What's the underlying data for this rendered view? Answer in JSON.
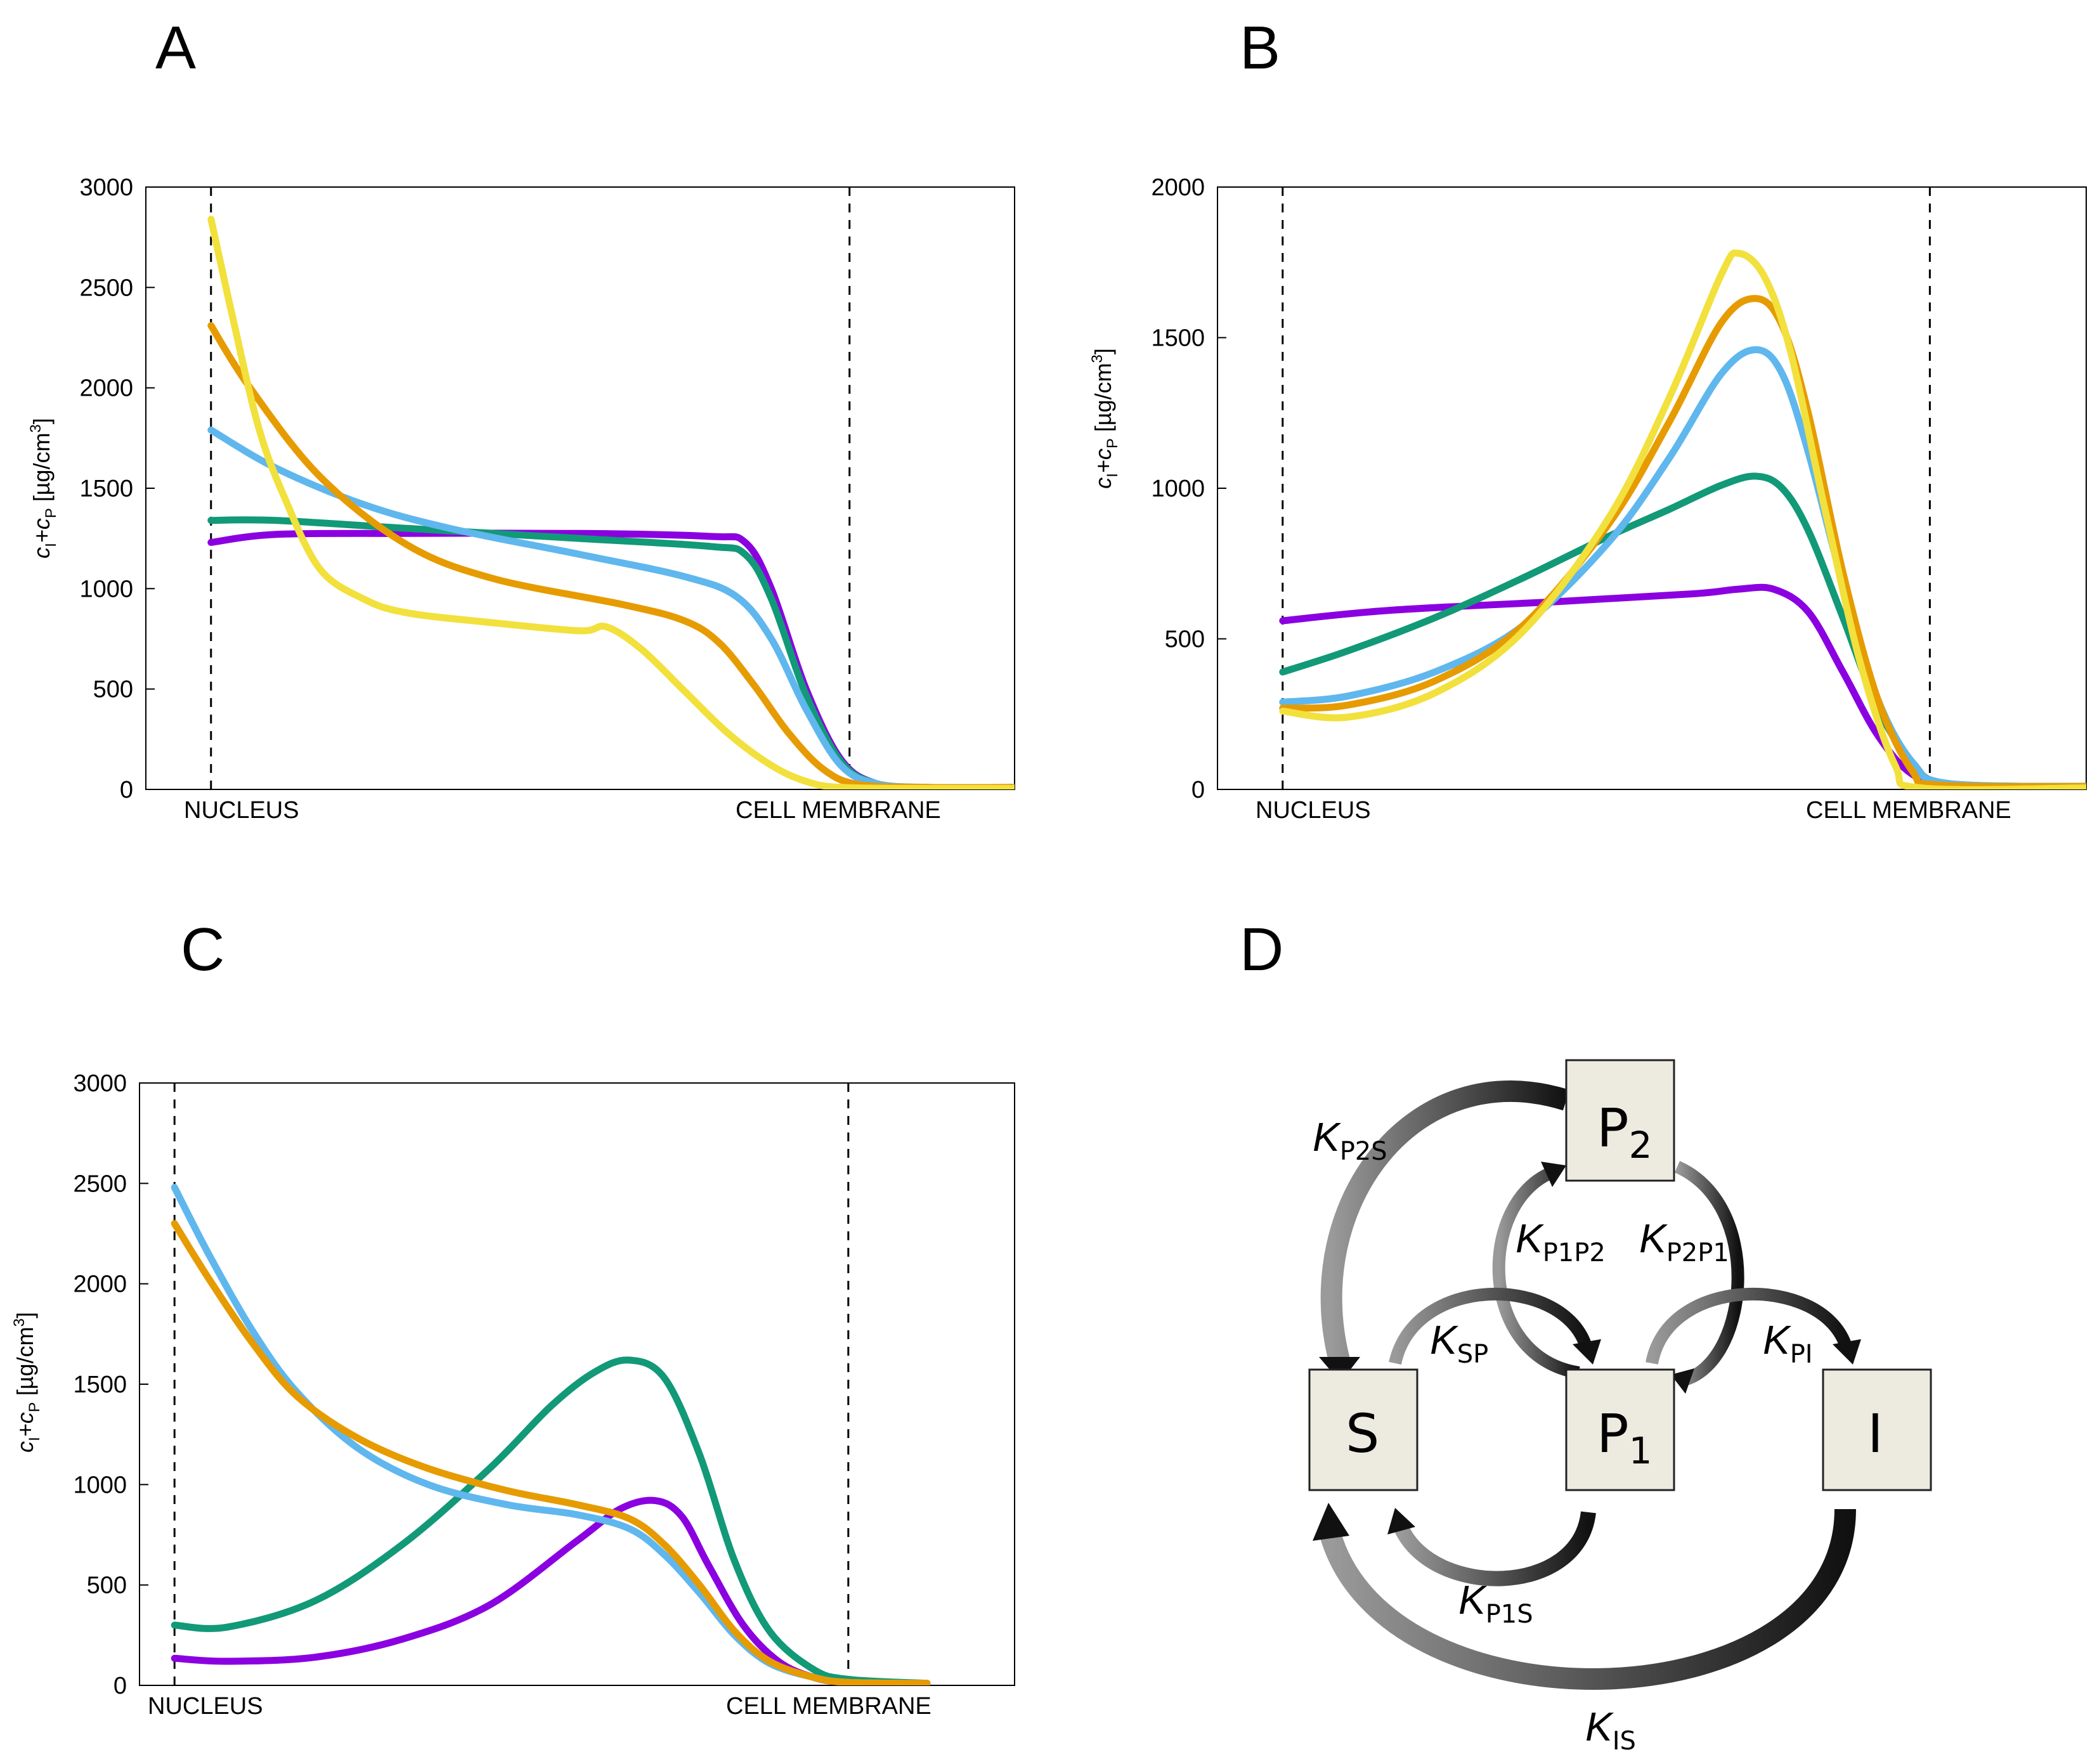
{
  "colors": {
    "purple": "#8b00e0",
    "green": "#129977",
    "blue": "#5fb7ee",
    "orange": "#e69b00",
    "yellow": "#f2e03c",
    "node_fill": "#edebe0"
  },
  "chart_data": [
    {
      "type": "line",
      "panel": "A",
      "ylabel": "c_I+c_P [µg/cm³]",
      "ylabel_parts": {
        "c1": "c",
        "s1": "I",
        "mid": "+c",
        "s2": "P",
        "unit": " [µg/cm",
        "sup": "3",
        "close": "]"
      },
      "xlim": [
        0,
        1
      ],
      "ylim": [
        0,
        3000
      ],
      "yticks": [
        "0",
        "500",
        "1000",
        "1500",
        "2000",
        "2500",
        "3000"
      ],
      "markers": {
        "nucleus": 0.075,
        "membrane": 0.81
      },
      "xlabels": {
        "nucleus": "NUCLEUS",
        "membrane": "CELL MEMBRANE"
      },
      "series": [
        {
          "name": "purple",
          "color": "#8b00e0",
          "x": [
            0.075,
            0.15,
            0.3,
            0.5,
            0.65,
            0.69,
            0.72,
            0.76,
            0.8,
            0.84,
            0.9,
            1.0
          ],
          "y": [
            1230,
            1270,
            1275,
            1275,
            1260,
            1230,
            1000,
            500,
            150,
            30,
            5,
            5
          ]
        },
        {
          "name": "green",
          "color": "#129977",
          "x": [
            0.075,
            0.15,
            0.3,
            0.5,
            0.65,
            0.69,
            0.72,
            0.76,
            0.8,
            0.84,
            0.9,
            1.0
          ],
          "y": [
            1340,
            1340,
            1300,
            1250,
            1210,
            1170,
            950,
            470,
            140,
            30,
            5,
            5
          ]
        },
        {
          "name": "blue",
          "color": "#5fb7ee",
          "x": [
            0.075,
            0.15,
            0.25,
            0.35,
            0.5,
            0.62,
            0.68,
            0.72,
            0.76,
            0.8,
            0.84,
            0.9,
            1.0
          ],
          "y": [
            1790,
            1600,
            1420,
            1300,
            1170,
            1060,
            960,
            750,
            400,
            120,
            30,
            10,
            10
          ]
        },
        {
          "name": "orange",
          "color": "#e69b00",
          "x": [
            0.075,
            0.12,
            0.2,
            0.3,
            0.4,
            0.55,
            0.62,
            0.66,
            0.7,
            0.74,
            0.78,
            0.82,
            0.9,
            1.0
          ],
          "y": [
            2310,
            2000,
            1560,
            1220,
            1050,
            920,
            840,
            730,
            520,
            280,
            100,
            25,
            10,
            10
          ]
        },
        {
          "name": "yellow",
          "color": "#f2e03c",
          "x": [
            0.075,
            0.1,
            0.13,
            0.16,
            0.2,
            0.25,
            0.3,
            0.4,
            0.5,
            0.53,
            0.57,
            0.62,
            0.67,
            0.72,
            0.76,
            0.8,
            0.9,
            1.0
          ],
          "y": [
            2840,
            2350,
            1800,
            1450,
            1100,
            950,
            880,
            830,
            790,
            810,
            700,
            490,
            280,
            120,
            40,
            10,
            5,
            5
          ]
        }
      ]
    },
    {
      "type": "line",
      "panel": "B",
      "ylabel": "c_I+c_P [µg/cm³]",
      "ylabel_parts": {
        "c1": "c",
        "s1": "I",
        "mid": "+c",
        "s2": "P",
        "unit": " [µg/cm",
        "sup": "3",
        "close": "]"
      },
      "xlim": [
        0,
        1
      ],
      "ylim": [
        0,
        2000
      ],
      "yticks": [
        "0",
        "500",
        "1000",
        "1500",
        "2000"
      ],
      "markers": {
        "nucleus": 0.075,
        "membrane": 0.82
      },
      "xlabels": {
        "nucleus": "NUCLEUS",
        "membrane": "CELL MEMBRANE"
      },
      "series": [
        {
          "name": "purple",
          "color": "#8b00e0",
          "x": [
            0.075,
            0.2,
            0.4,
            0.55,
            0.6,
            0.64,
            0.68,
            0.72,
            0.76,
            0.8,
            0.85,
            1.0
          ],
          "y": [
            560,
            595,
            625,
            650,
            665,
            665,
            590,
            390,
            180,
            50,
            10,
            10
          ]
        },
        {
          "name": "green",
          "color": "#129977",
          "x": [
            0.075,
            0.15,
            0.25,
            0.35,
            0.45,
            0.52,
            0.58,
            0.62,
            0.65,
            0.68,
            0.72,
            0.76,
            0.8,
            0.84,
            1.0
          ],
          "y": [
            390,
            460,
            570,
            700,
            840,
            930,
            1010,
            1040,
            1000,
            860,
            570,
            270,
            90,
            20,
            10
          ]
        },
        {
          "name": "blue",
          "color": "#5fb7ee",
          "x": [
            0.075,
            0.15,
            0.25,
            0.35,
            0.45,
            0.52,
            0.58,
            0.62,
            0.65,
            0.68,
            0.72,
            0.76,
            0.8,
            0.84,
            1.0
          ],
          "y": [
            290,
            310,
            390,
            540,
            820,
            1100,
            1380,
            1460,
            1380,
            1120,
            680,
            300,
            90,
            20,
            10
          ]
        },
        {
          "name": "orange",
          "color": "#e69b00",
          "x": [
            0.075,
            0.15,
            0.25,
            0.35,
            0.45,
            0.52,
            0.58,
            0.62,
            0.65,
            0.68,
            0.72,
            0.76,
            0.8,
            0.83,
            1.0
          ],
          "y": [
            270,
            280,
            360,
            540,
            880,
            1220,
            1550,
            1630,
            1540,
            1250,
            720,
            300,
            60,
            15,
            10
          ]
        },
        {
          "name": "yellow",
          "color": "#f2e03c",
          "x": [
            0.075,
            0.15,
            0.25,
            0.35,
            0.45,
            0.52,
            0.58,
            0.6,
            0.63,
            0.66,
            0.7,
            0.74,
            0.78,
            0.81,
            1.0
          ],
          "y": [
            260,
            240,
            320,
            520,
            900,
            1300,
            1710,
            1780,
            1700,
            1450,
            920,
            420,
            80,
            5,
            5
          ]
        }
      ]
    },
    {
      "type": "line",
      "panel": "C",
      "ylabel": "c_I+c_P [µg/cm³]",
      "ylabel_parts": {
        "c1": "c",
        "s1": "I",
        "mid": "+c",
        "s2": "P",
        "unit": " [µg/cm",
        "sup": "3",
        "close": "]"
      },
      "xlim": [
        0,
        1
      ],
      "ylim": [
        0,
        3000
      ],
      "yticks": [
        "0",
        "500",
        "1000",
        "1500",
        "2000",
        "2500",
        "3000"
      ],
      "markers": {
        "nucleus": 0.04,
        "membrane": 0.81
      },
      "xlabels": {
        "nucleus": "NUCLEUS",
        "membrane": "CELL MEMBRANE"
      },
      "series": [
        {
          "name": "purple",
          "color": "#8b00e0",
          "x": [
            0.04,
            0.1,
            0.2,
            0.3,
            0.4,
            0.5,
            0.55,
            0.59,
            0.62,
            0.65,
            0.69,
            0.73,
            0.77,
            0.81,
            0.9
          ],
          "y": [
            135,
            120,
            140,
            230,
            400,
            720,
            880,
            920,
            840,
            600,
            300,
            120,
            40,
            15,
            10
          ]
        },
        {
          "name": "green",
          "color": "#129977",
          "x": [
            0.04,
            0.1,
            0.2,
            0.3,
            0.4,
            0.47,
            0.52,
            0.56,
            0.6,
            0.64,
            0.68,
            0.72,
            0.77,
            0.81,
            0.9
          ],
          "y": [
            300,
            290,
            420,
            700,
            1080,
            1390,
            1560,
            1620,
            1530,
            1150,
            620,
            270,
            80,
            30,
            10
          ]
        },
        {
          "name": "blue",
          "color": "#5fb7ee",
          "x": [
            0.04,
            0.08,
            0.13,
            0.18,
            0.25,
            0.33,
            0.42,
            0.5,
            0.56,
            0.6,
            0.64,
            0.68,
            0.72,
            0.77,
            0.81,
            0.9
          ],
          "y": [
            2480,
            2140,
            1760,
            1460,
            1180,
            1000,
            900,
            850,
            780,
            650,
            460,
            250,
            110,
            40,
            15,
            10
          ]
        },
        {
          "name": "orange",
          "color": "#e69b00",
          "x": [
            0.04,
            0.08,
            0.13,
            0.18,
            0.25,
            0.33,
            0.42,
            0.5,
            0.56,
            0.6,
            0.64,
            0.68,
            0.72,
            0.77,
            0.81,
            0.9
          ],
          "y": [
            2300,
            2020,
            1700,
            1440,
            1230,
            1080,
            970,
            900,
            830,
            700,
            500,
            270,
            120,
            40,
            15,
            10
          ]
        }
      ]
    }
  ],
  "panels": {
    "a": {
      "letter": "A"
    },
    "b": {
      "letter": "B"
    },
    "c": {
      "letter": "C"
    },
    "d": {
      "letter": "D"
    }
  },
  "diagram": {
    "nodes": {
      "S": {
        "label": "S"
      },
      "P1": {
        "label": "P",
        "sub": "1"
      },
      "P2": {
        "label": "P",
        "sub": "2"
      },
      "I": {
        "label": "I"
      }
    },
    "rates": {
      "P2S": {
        "k": "K",
        "sub": "P2S"
      },
      "P1P2": {
        "k": "K",
        "sub": "P1P2"
      },
      "P2P1": {
        "k": "K",
        "sub": "P2P1"
      },
      "SP": {
        "k": "K",
        "sub": "SP"
      },
      "PI": {
        "k": "K",
        "sub": "PI"
      },
      "P1S": {
        "k": "K",
        "sub": "P1S"
      },
      "IS": {
        "k": "K",
        "sub": "IS"
      }
    }
  }
}
